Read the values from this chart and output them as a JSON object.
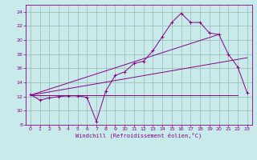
{
  "xlabel": "Windchill (Refroidissement éolien,°C)",
  "bg_color": "#c8eaea",
  "grid_color": "#a0c0b8",
  "line_color": "#880088",
  "spine_color": "#880088",
  "xlim": [
    -0.5,
    23.5
  ],
  "ylim": [
    8,
    25
  ],
  "xticks": [
    0,
    1,
    2,
    3,
    4,
    5,
    6,
    7,
    8,
    9,
    10,
    11,
    12,
    13,
    14,
    15,
    16,
    17,
    18,
    19,
    20,
    21,
    22,
    23
  ],
  "yticks": [
    8,
    10,
    12,
    14,
    16,
    18,
    20,
    22,
    24
  ],
  "line1_x": [
    0,
    1,
    2,
    3,
    4,
    5,
    6,
    7,
    8,
    9,
    10,
    11,
    12,
    13,
    14,
    15,
    16,
    17,
    18,
    19,
    20,
    21,
    22,
    23
  ],
  "line1_y": [
    12.3,
    11.5,
    11.8,
    12.0,
    12.1,
    12.1,
    11.9,
    8.5,
    12.8,
    15.0,
    15.5,
    16.7,
    17.0,
    18.5,
    20.5,
    22.5,
    23.8,
    22.5,
    22.5,
    21.0,
    20.8,
    18.0,
    16.2,
    12.5
  ],
  "line2_x": [
    0,
    22
  ],
  "line2_y": [
    12.2,
    12.2
  ],
  "line3_x": [
    0,
    23
  ],
  "line3_y": [
    12.2,
    17.5
  ],
  "line4_x": [
    0,
    20
  ],
  "line4_y": [
    12.2,
    20.8
  ]
}
